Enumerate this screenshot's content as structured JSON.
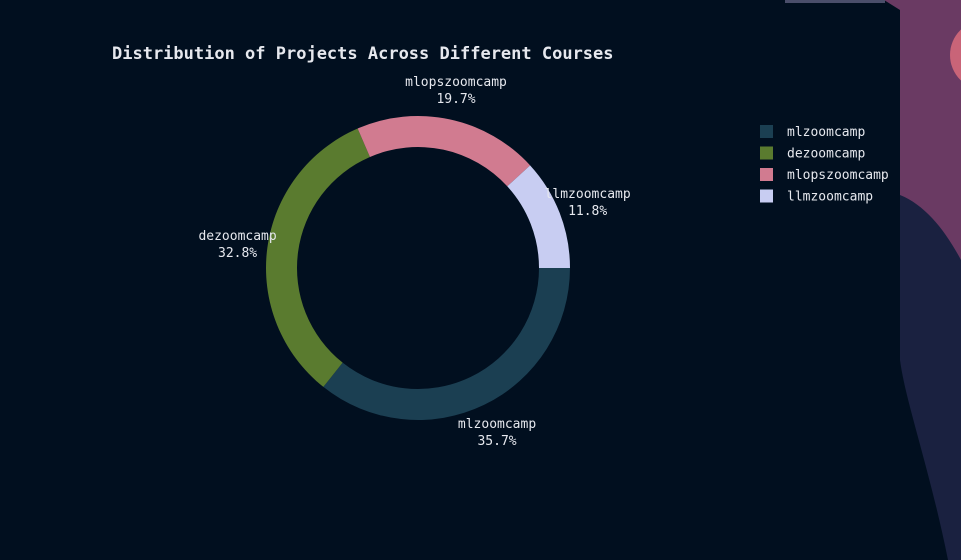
{
  "chart_data": {
    "type": "donut",
    "title": "Distribution of Projects Across Different Courses",
    "categories": [
      "mlzoomcamp",
      "dezoomcamp",
      "mlopszoomcamp",
      "llmzoomcamp"
    ],
    "values": [
      35.7,
      32.8,
      19.7,
      11.8
    ],
    "value_labels": [
      "35.7%",
      "32.8%",
      "19.7%",
      "11.8%"
    ],
    "colors": [
      "#1b3f52",
      "#5a7b2f",
      "#d17b90",
      "#c8cdf2"
    ],
    "legend": "top-right"
  }
}
